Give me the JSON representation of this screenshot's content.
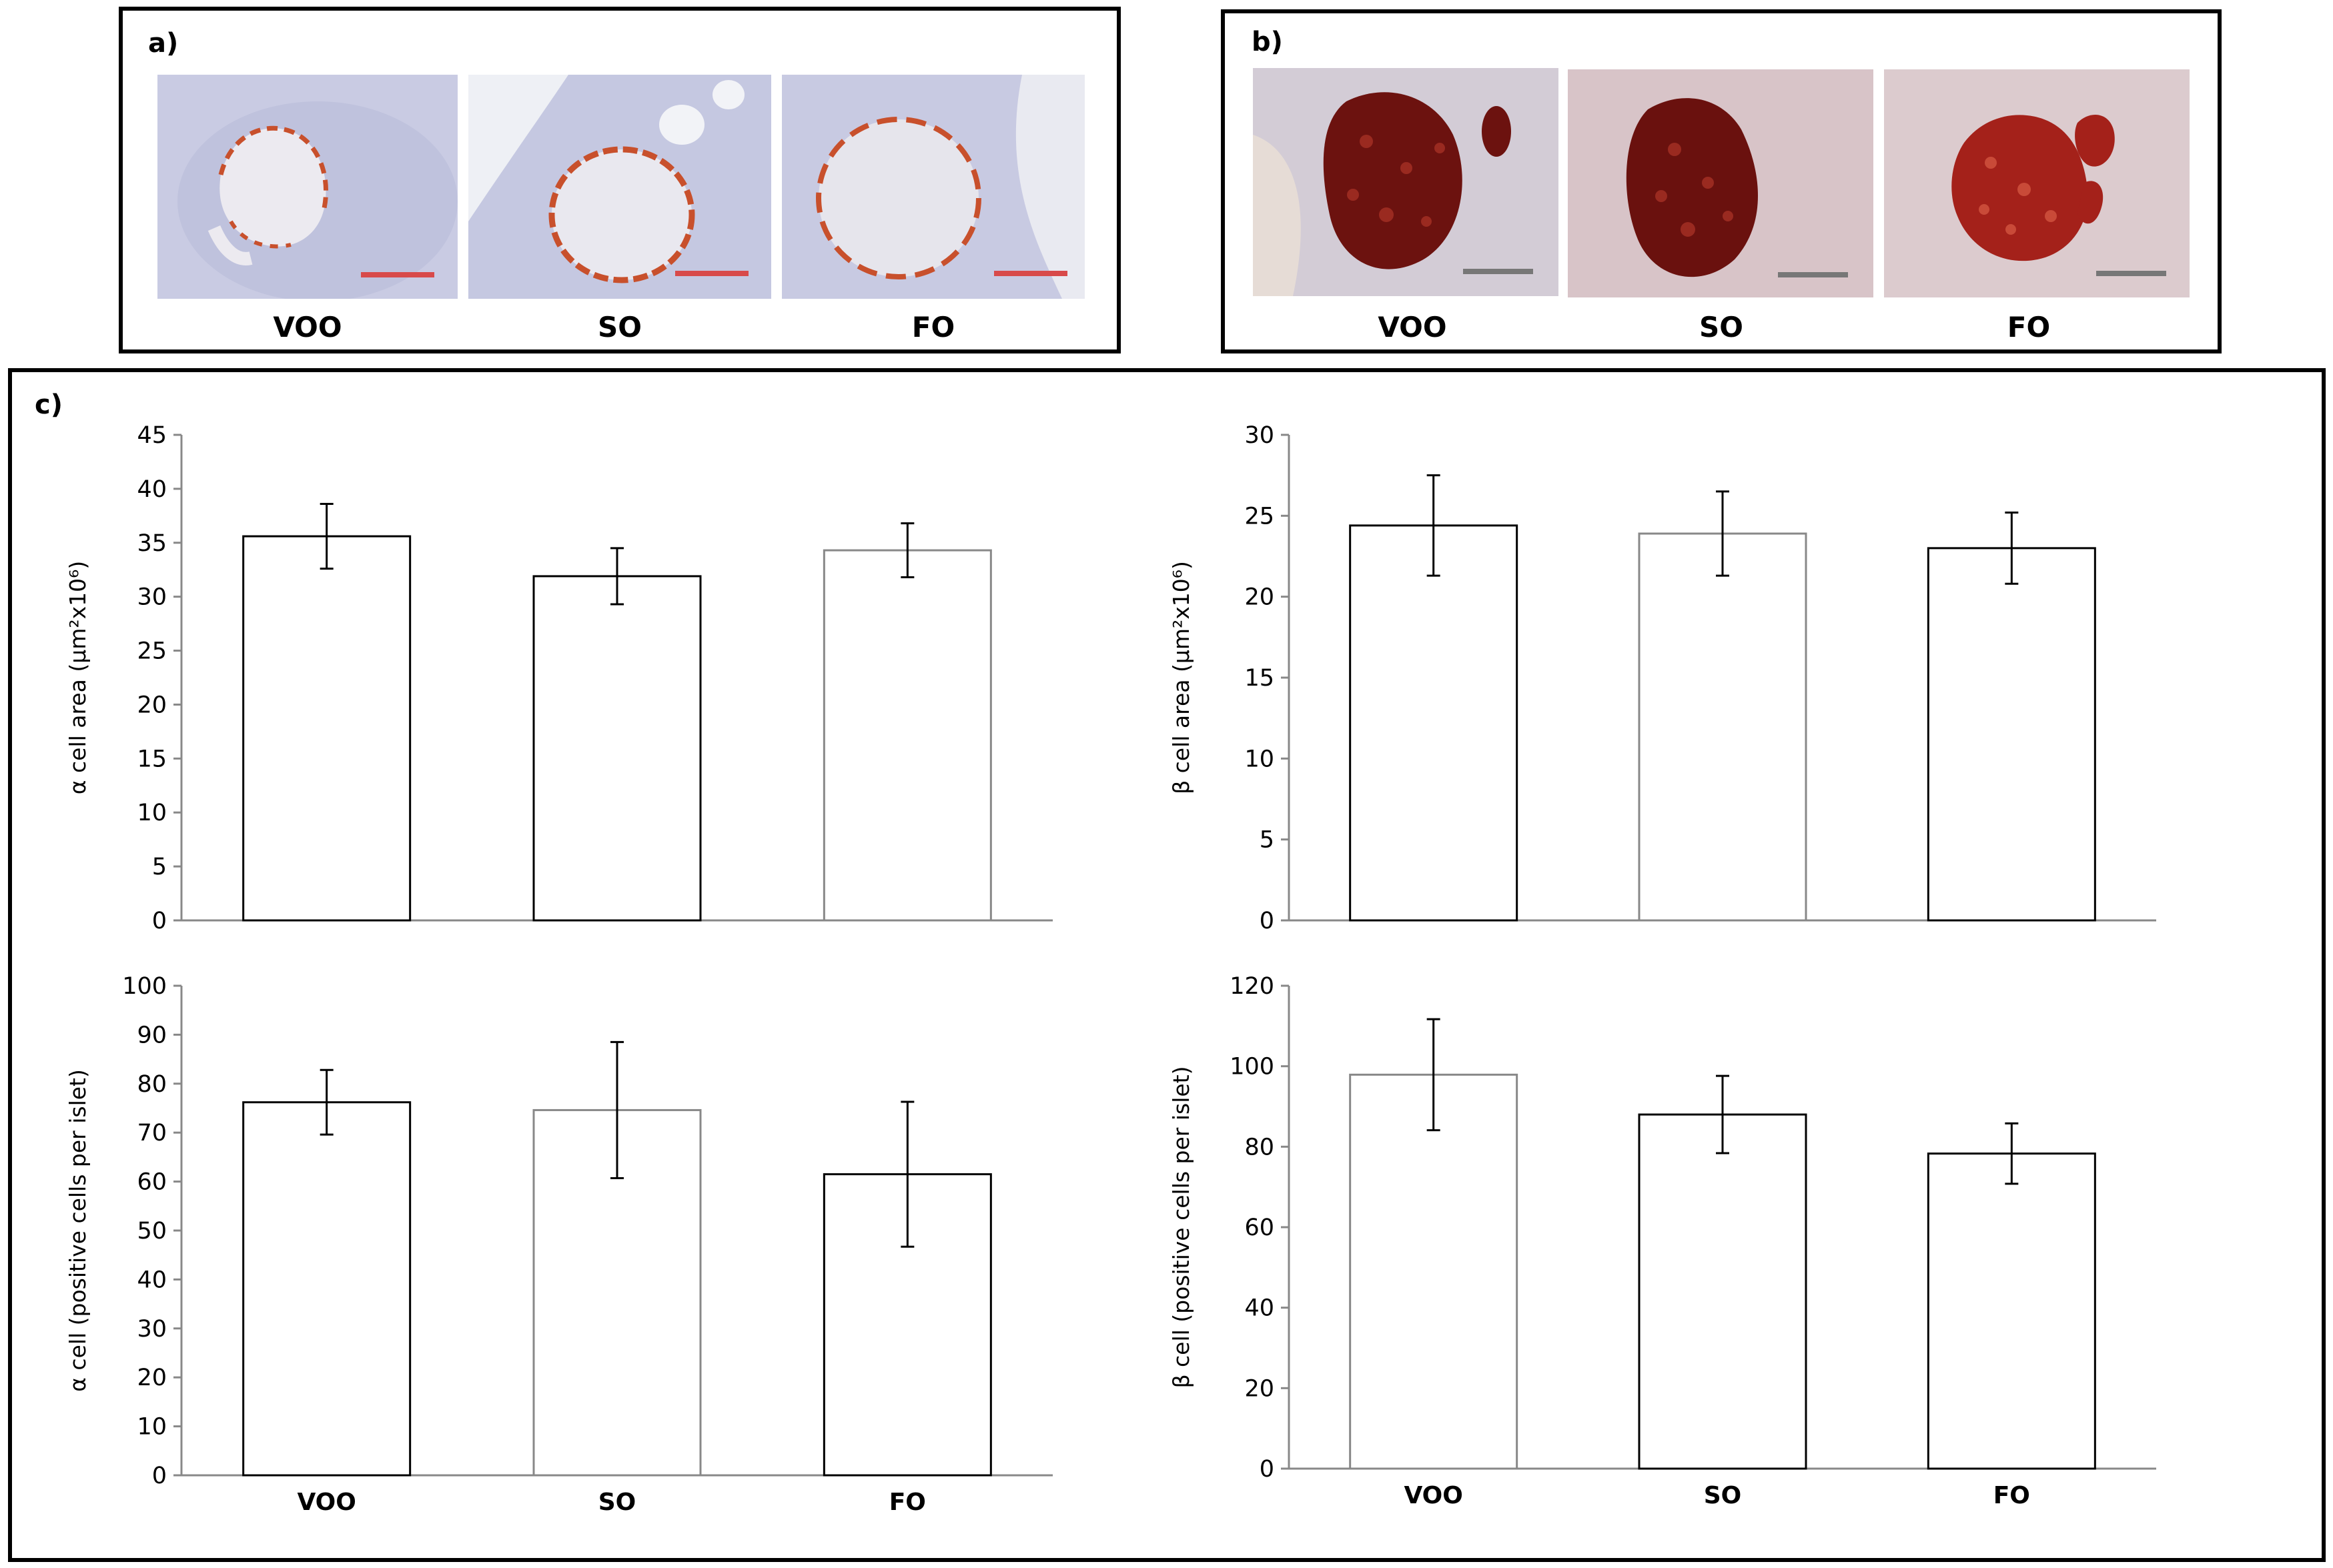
{
  "panels": {
    "a": {
      "label": "a)",
      "captions": [
        "VOO",
        "SO",
        "FO"
      ]
    },
    "b": {
      "label": "b)",
      "captions": [
        "VOO",
        "SO",
        "FO"
      ]
    },
    "c": {
      "label": "c)"
    }
  },
  "colors": {
    "alpha_stain": "#c8502c",
    "beta_stain": "#7a1210",
    "tissue_blue": "#c7c9e2",
    "scale_bar_a": "#d84a4a",
    "scale_bar_b": "#777777"
  },
  "chart_data": [
    {
      "type": "bar",
      "categories": [
        "VOO",
        "SO",
        "FO"
      ],
      "values": [
        35.6,
        31.9,
        34.3
      ],
      "errors": [
        3.0,
        2.6,
        2.5
      ],
      "ylabel": "α cell area (μm²x10⁶)",
      "ylim": [
        0,
        45
      ],
      "yticks": [
        0,
        5,
        10,
        15,
        20,
        25,
        30,
        35,
        40,
        45
      ],
      "show_x_labels": false
    },
    {
      "type": "bar",
      "categories": [
        "VOO",
        "SO",
        "FO"
      ],
      "values": [
        24.4,
        23.9,
        23.0
      ],
      "errors": [
        3.1,
        2.6,
        2.2
      ],
      "ylabel": "β cell area (μm²x10⁶)",
      "ylim": [
        0,
        30
      ],
      "yticks": [
        0,
        5,
        10,
        15,
        20,
        25,
        30
      ],
      "show_x_labels": false
    },
    {
      "type": "bar",
      "categories": [
        "VOO",
        "SO",
        "FO"
      ],
      "values": [
        76.2,
        74.6,
        61.5
      ],
      "errors": [
        6.6,
        13.9,
        14.8
      ],
      "ylabel": "α cell (positive cells per islet)",
      "ylim": [
        0,
        100
      ],
      "yticks": [
        0,
        10,
        20,
        30,
        40,
        50,
        60,
        70,
        80,
        90,
        100
      ],
      "show_x_labels": true
    },
    {
      "type": "bar",
      "categories": [
        "VOO",
        "SO",
        "FO"
      ],
      "values": [
        97.9,
        88.0,
        78.3
      ],
      "errors": [
        13.8,
        9.6,
        7.5
      ],
      "ylabel": "β cell (positive cells per islet)",
      "ylim": [
        0,
        120
      ],
      "yticks": [
        0,
        20,
        40,
        60,
        80,
        100,
        120
      ],
      "show_x_labels": true
    }
  ]
}
